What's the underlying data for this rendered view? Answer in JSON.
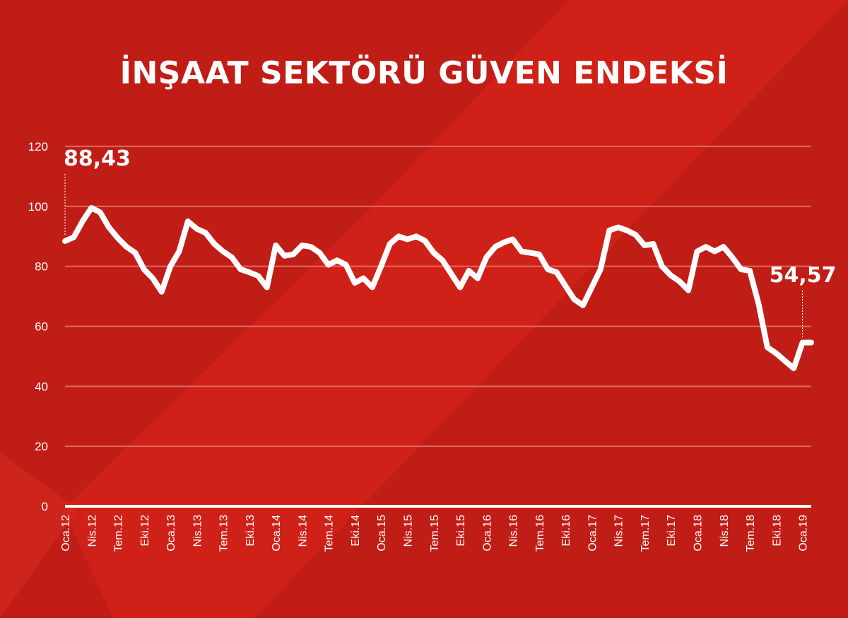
{
  "title": "İNŞAAT SEKTÖRÜ GÜVEN ENDEKSİ",
  "colors": {
    "background": "#c11d17",
    "background_light": "#d4231a",
    "line": "#ffffff",
    "gridline": "#e0675f",
    "text": "#ffffff"
  },
  "chart_data": {
    "type": "line",
    "title": "İNŞAAT SEKTÖRÜ GÜVEN ENDEKSİ",
    "xlabel": "",
    "ylabel": "",
    "ylim": [
      0,
      120
    ],
    "yticks": [
      0,
      20,
      40,
      60,
      80,
      100,
      120
    ],
    "grid": true,
    "x_tick_labels": [
      "Oca.12",
      "Nis.12",
      "Tem.12",
      "Eki.12",
      "Oca.13",
      "Nis.13",
      "Tem.13",
      "Eki.13",
      "Oca.14",
      "Nis.14",
      "Tem.14",
      "Eki.14",
      "Oca.15",
      "Nis.15",
      "Tem.15",
      "Eki.15",
      "Oca.16",
      "Nis.16",
      "Tem.16",
      "Eki.16",
      "Oca.17",
      "Nis.17",
      "Tem.17",
      "Eki.17",
      "Oca.18",
      "Nis.18",
      "Tem.18",
      "Eki.18",
      "Oca.19"
    ],
    "x": [
      "Oca.12",
      "Şub.12",
      "Mar.12",
      "Nis.12",
      "May.12",
      "Haz.12",
      "Tem.12",
      "Ağu.12",
      "Eyl.12",
      "Eki.12",
      "Kas.12",
      "Ara.12",
      "Oca.13",
      "Şub.13",
      "Mar.13",
      "Nis.13",
      "May.13",
      "Haz.13",
      "Tem.13",
      "Ağu.13",
      "Eyl.13",
      "Eki.13",
      "Kas.13",
      "Ara.13",
      "Oca.14",
      "Şub.14",
      "Mar.14",
      "Nis.14",
      "May.14",
      "Haz.14",
      "Tem.14",
      "Ağu.14",
      "Eyl.14",
      "Eki.14",
      "Kas.14",
      "Ara.14",
      "Oca.15",
      "Şub.15",
      "Mar.15",
      "Nis.15",
      "May.15",
      "Haz.15",
      "Tem.15",
      "Ağu.15",
      "Eyl.15",
      "Eki.15",
      "Kas.15",
      "Ara.15",
      "Oca.16",
      "Şub.16",
      "Mar.16",
      "Nis.16",
      "May.16",
      "Haz.16",
      "Tem.16",
      "Ağu.16",
      "Eyl.16",
      "Eki.16",
      "Kas.16",
      "Ara.16",
      "Oca.17",
      "Şub.17",
      "Mar.17",
      "Nis.17",
      "May.17",
      "Haz.17",
      "Tem.17",
      "Ağu.17",
      "Eyl.17",
      "Eki.17",
      "Kas.17",
      "Ara.17",
      "Oca.18",
      "Şub.18",
      "Mar.18",
      "Nis.18",
      "May.18",
      "Haz.18",
      "Tem.18",
      "Ağu.18",
      "Eyl.18",
      "Eki.18",
      "Kas.18",
      "Ara.18",
      "Oca.19",
      "Şub.19"
    ],
    "series": [
      {
        "name": "",
        "values": [
          88.43,
          89.7,
          95.0,
          99.5,
          98.0,
          93.0,
          89.5,
          86.5,
          84.5,
          79.0,
          76.0,
          71.5,
          80.0,
          85.0,
          95.0,
          92.5,
          91.2,
          87.5,
          85.0,
          83.0,
          79.0,
          78.0,
          76.8,
          73.0,
          87.0,
          83.5,
          84.0,
          87.0,
          86.5,
          84.5,
          80.5,
          82.0,
          80.5,
          74.5,
          76.0,
          73.0,
          80.0,
          87.5,
          90.0,
          89.0,
          90.0,
          88.5,
          84.5,
          82.0,
          77.5,
          73.0,
          78.5,
          76.0,
          83.0,
          86.5,
          88.0,
          89.0,
          85.0,
          84.5,
          84.0,
          79.0,
          78.0,
          73.5,
          69.0,
          67.0,
          73.0,
          79.0,
          92.0,
          93.0,
          92.0,
          90.5,
          87.0,
          87.5,
          80.0,
          77.0,
          75.0,
          72.0,
          85.0,
          86.5,
          85.0,
          86.5,
          83.0,
          79.0,
          78.5,
          67.5,
          53.0,
          51.0,
          48.5,
          46.0,
          54.57,
          54.57
        ]
      }
    ],
    "annotations": [
      {
        "label": "88,43",
        "x": "Oca.12",
        "y": 88.43
      },
      {
        "label": "54,57",
        "x": "Oca.19",
        "y": 54.57
      }
    ]
  }
}
